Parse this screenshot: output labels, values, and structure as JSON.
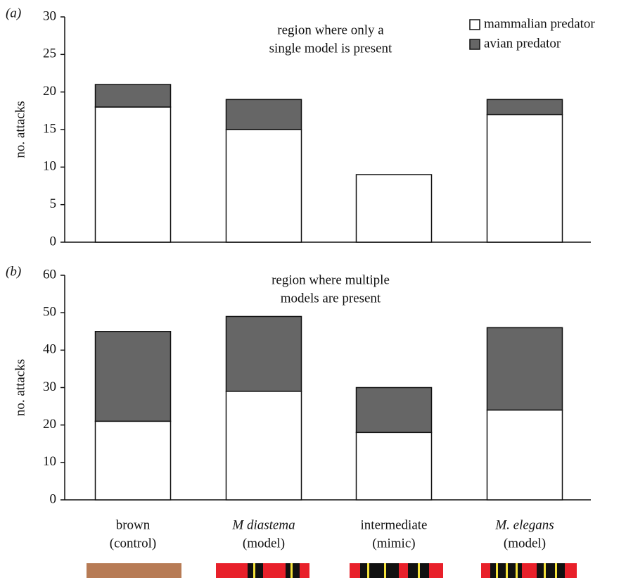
{
  "chart_data": [
    {
      "type": "stacked_bar",
      "panel_label": "(a)",
      "annotation": [
        "region where only a",
        "single model is present"
      ],
      "y_label": "no. attacks",
      "categories": [
        null,
        null,
        null,
        null
      ],
      "series": [
        {
          "name": "mammalian predator",
          "color": "#ffffff",
          "values": [
            18,
            15,
            9,
            17
          ]
        },
        {
          "name": "avian predator",
          "color": "#666666",
          "values": [
            3,
            4,
            0,
            2
          ]
        }
      ],
      "ylim": [
        0,
        30
      ],
      "yticks": [
        0,
        5,
        10,
        15,
        20,
        25,
        30
      ],
      "legend": "top-right"
    },
    {
      "type": "stacked_bar",
      "panel_label": "(b)",
      "annotation": [
        "region where multiple",
        "models are present"
      ],
      "y_label": "no. attacks",
      "categories": [
        "brown",
        "M diastema",
        "intermediate",
        "M. elegans"
      ],
      "category_sublabels": [
        "(control)",
        "(model)",
        "(mimic)",
        "(model)"
      ],
      "italic_categories": [
        false,
        true,
        false,
        true
      ],
      "series": [
        {
          "color": "#ffffff",
          "values": [
            21,
            29,
            18,
            24
          ]
        },
        {
          "color": "#666666",
          "values": [
            24,
            20,
            12,
            22
          ]
        }
      ],
      "ylim": [
        0,
        60
      ],
      "yticks": [
        0,
        10,
        20,
        30,
        40,
        50,
        60
      ]
    }
  ]
}
